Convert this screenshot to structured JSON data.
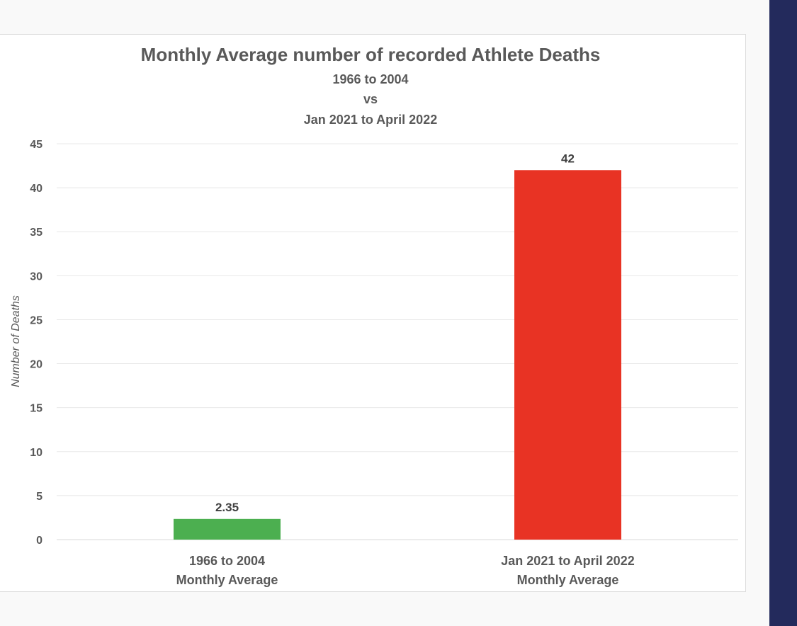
{
  "chart_data": {
    "type": "bar",
    "title": "Monthly Average number of recorded Athlete Deaths",
    "subtitle_lines": [
      "1966 to 2004",
      "vs",
      "Jan 2021 to April 2022"
    ],
    "categories": [
      [
        "1966 to 2004",
        "Monthly Average"
      ],
      [
        "Jan 2021 to April 2022",
        "Monthly Average"
      ]
    ],
    "values": [
      2.35,
      42
    ],
    "data_labels": [
      "2.35",
      "42"
    ],
    "colors": [
      "#4caf50",
      "#e83324"
    ],
    "xlabel": "",
    "ylabel": "Number of Deaths",
    "ylim": [
      0,
      45
    ],
    "yticks": [
      0,
      5,
      10,
      15,
      20,
      25,
      30,
      35,
      40,
      45
    ],
    "grid": true,
    "legend": "none"
  }
}
